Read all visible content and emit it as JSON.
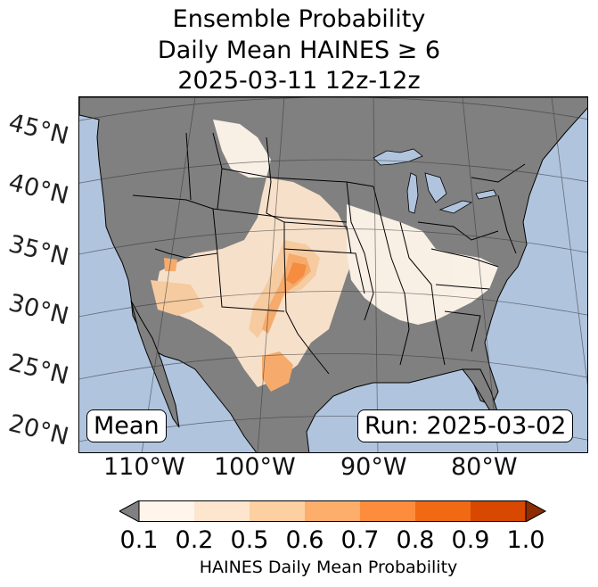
{
  "title": {
    "line1": "Ensemble Probability",
    "line2": "Daily Mean HAINES ≥ 6",
    "line3": "2025-03-11 12z-12z"
  },
  "map": {
    "projection": "lambert-conformal",
    "ocean_color": "#b0c4de",
    "land_color": "#808080",
    "lat_labels": [
      "45°N",
      "40°N",
      "35°N",
      "30°N",
      "25°N",
      "20°N"
    ],
    "lon_labels": [
      "110°W",
      "100°W",
      "90°W",
      "80°W"
    ],
    "stat_box": "Mean",
    "run_box": "Run: 2025-03-02"
  },
  "colorbar": {
    "label": "HAINES Daily Mean Probability",
    "ticks": [
      "0.1",
      "0.2",
      "0.5",
      "0.6",
      "0.7",
      "0.8",
      "0.9",
      "1.0"
    ],
    "colors": [
      "#fff5eb",
      "#fee6ce",
      "#fdd0a2",
      "#fdae6b",
      "#fd8d3c",
      "#f16913",
      "#d94801"
    ],
    "under_color": "#808080",
    "over_color": "#8c2d04"
  }
}
